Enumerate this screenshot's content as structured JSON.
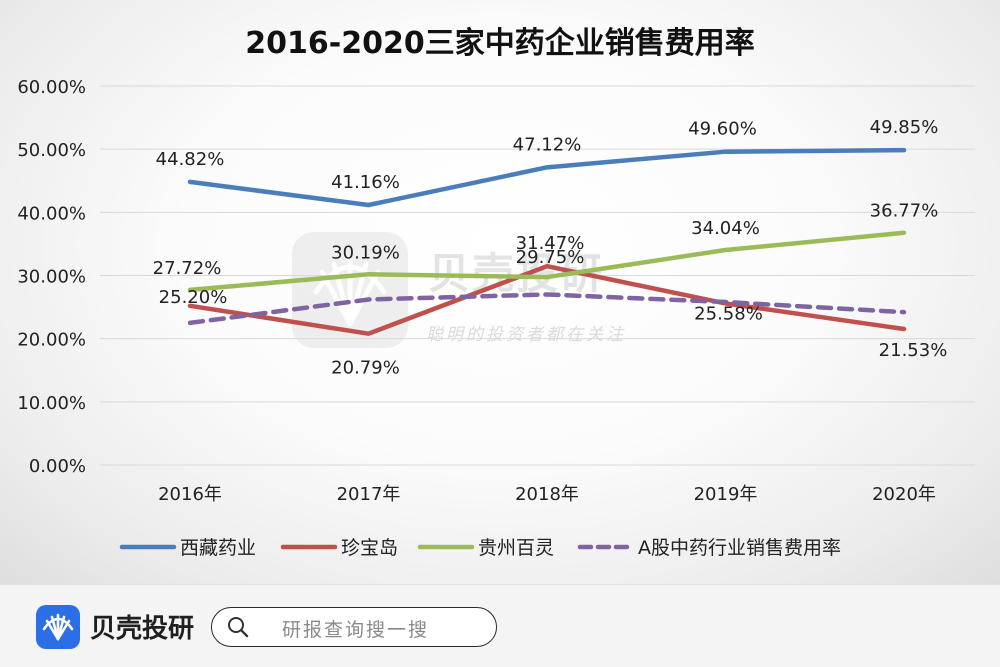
{
  "chart_data": {
    "type": "line",
    "title": "2016-2020三家中药企业销售费用率",
    "categories": [
      "2016年",
      "2017年",
      "2018年",
      "2019年",
      "2020年"
    ],
    "y_tick_labels": [
      "0.00%",
      "10.00%",
      "20.00%",
      "30.00%",
      "40.00%",
      "50.00%",
      "60.00%"
    ],
    "ylim": [
      0,
      60
    ],
    "y_unit": "%",
    "grid": true,
    "legend_position": "bottom",
    "series": [
      {
        "name": "西藏药业",
        "color": "#4a7ebb",
        "dashed": false,
        "values": [
          44.82,
          41.16,
          47.12,
          49.6,
          49.85
        ],
        "labels": [
          "44.82%",
          "41.16%",
          "47.12%",
          "49.60%",
          "49.85%"
        ]
      },
      {
        "name": "珍宝岛",
        "color": "#c0504d",
        "dashed": false,
        "values": [
          25.2,
          20.79,
          31.47,
          25.58,
          21.53
        ],
        "labels": [
          "25.20%",
          "20.79%",
          "31.47%",
          "25.58%",
          "21.53%"
        ]
      },
      {
        "name": "贵州百灵",
        "color": "#9bbb59",
        "dashed": false,
        "values": [
          27.72,
          30.19,
          29.75,
          34.04,
          36.77
        ],
        "labels": [
          "27.72%",
          "30.19%",
          "29.75%",
          "34.04%",
          "36.77%"
        ]
      },
      {
        "name": "A股中药行业销售费用率",
        "color": "#8064a2",
        "dashed": true,
        "values": [
          22.5,
          26.2,
          27.0,
          25.8,
          24.2
        ],
        "labels": []
      }
    ]
  },
  "watermark": {
    "title": "贝壳投研",
    "slogan": "聪明的投资者都在关注"
  },
  "footer": {
    "brand_name": "贝壳投研",
    "search_placeholder": "研报查询搜一搜",
    "logo_icon": "shell-logo-icon",
    "search_icon": "search-icon",
    "brand_color": "#2b6ee6"
  }
}
